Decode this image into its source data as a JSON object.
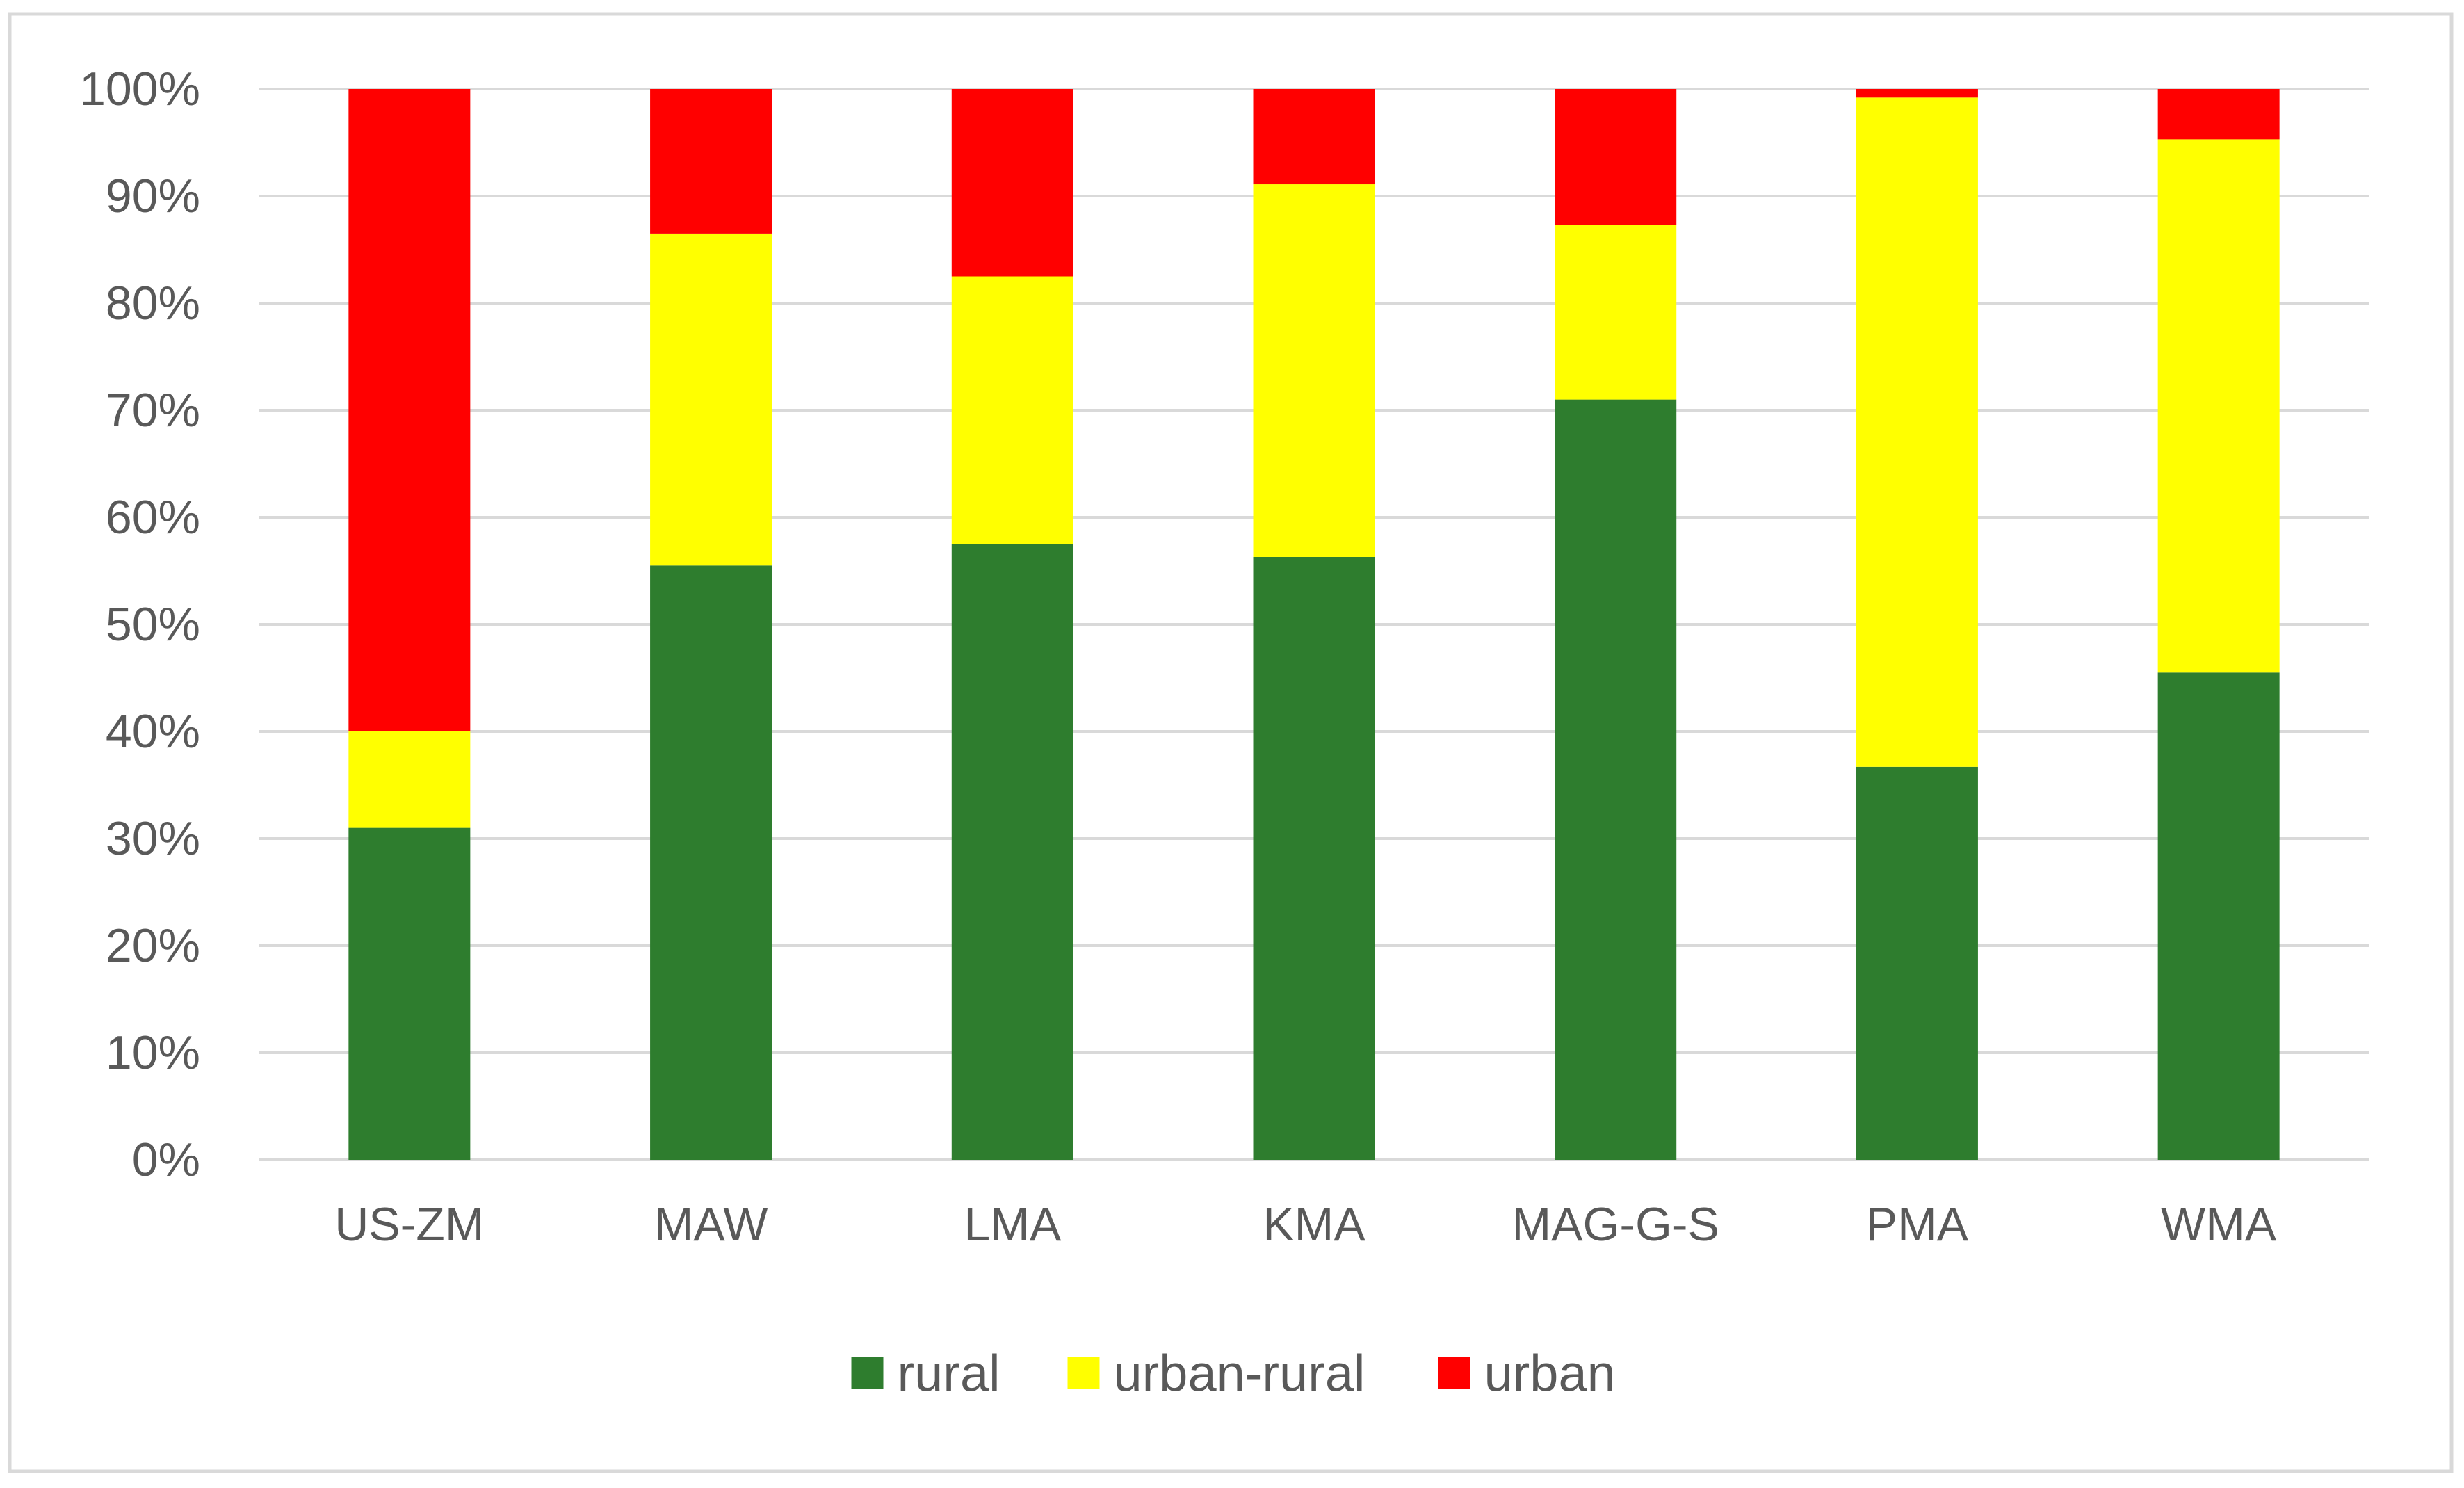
{
  "chart_data": {
    "type": "bar",
    "stacked": true,
    "normalized": true,
    "title": "",
    "xlabel": "",
    "ylabel": "",
    "categories": [
      "US-ZM",
      "MAW",
      "LMA",
      "KMA",
      "MAG-G-S",
      "PMA",
      "WMA"
    ],
    "series": [
      {
        "name": "rural",
        "color": "#2e7d2e",
        "values": [
          31,
          55.5,
          57.5,
          56.3,
          71,
          36.7,
          45.5
        ]
      },
      {
        "name": "urban-rural",
        "color": "#ffff00",
        "values": [
          9,
          31,
          25,
          34.8,
          16.3,
          62.5,
          49.8
        ]
      },
      {
        "name": "urban",
        "color": "#ff0000",
        "values": [
          60,
          13.5,
          17.5,
          8.9,
          12.7,
          0.8,
          4.7
        ]
      }
    ],
    "ylim": [
      0,
      100
    ],
    "yticks": [
      "0%",
      "10%",
      "20%",
      "30%",
      "40%",
      "50%",
      "60%",
      "70%",
      "80%",
      "90%",
      "100%"
    ],
    "grid": true,
    "legend_position": "bottom"
  }
}
